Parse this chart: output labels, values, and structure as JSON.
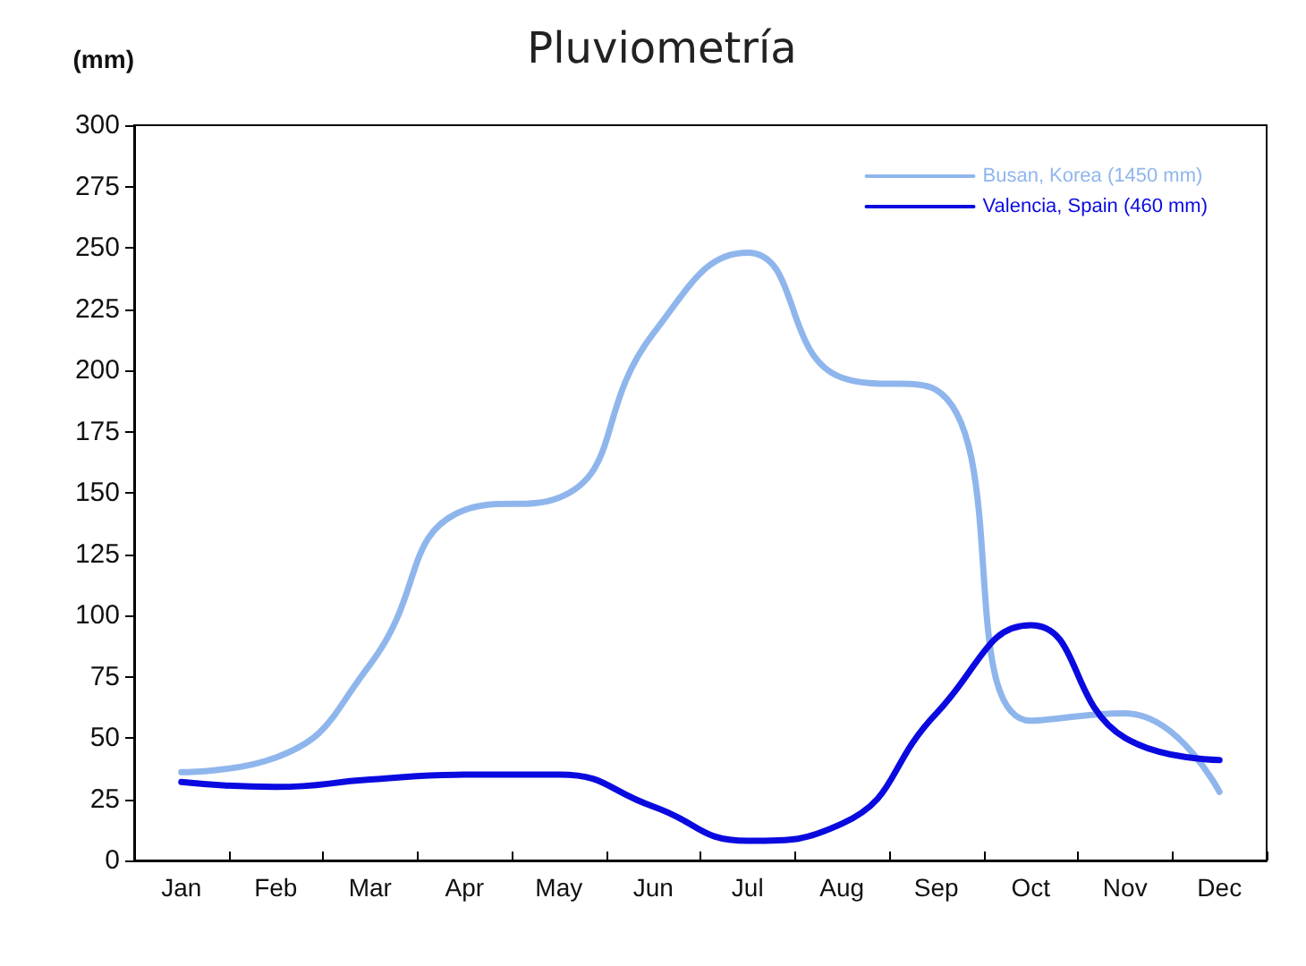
{
  "chart_data": {
    "type": "line",
    "title": "Pluviometría",
    "ylabel": "(mm)",
    "categories": [
      "Jan",
      "Feb",
      "Mar",
      "Apr",
      "May",
      "Jun",
      "Jul",
      "Aug",
      "Sep",
      "Oct",
      "Nov",
      "Dec"
    ],
    "series": [
      {
        "name": "Busan, Korea (1450 mm)",
        "color": "#8fb6ec",
        "values": [
          36,
          42,
          80,
          143,
          148,
          215,
          248,
          197,
          192,
          57,
          60,
          28
        ]
      },
      {
        "name": "Valencia, Spain (460 mm)",
        "color": "#0a0ae0",
        "values": [
          32,
          30,
          33,
          35,
          35,
          22,
          8,
          15,
          60,
          96,
          50,
          41
        ]
      }
    ],
    "ylim": [
      0,
      300
    ],
    "yticks": [
      0,
      25,
      50,
      75,
      100,
      125,
      150,
      175,
      200,
      225,
      250,
      275,
      300
    ],
    "grid": false,
    "legend": "top right",
    "marker": "none",
    "line_style": "solid"
  }
}
